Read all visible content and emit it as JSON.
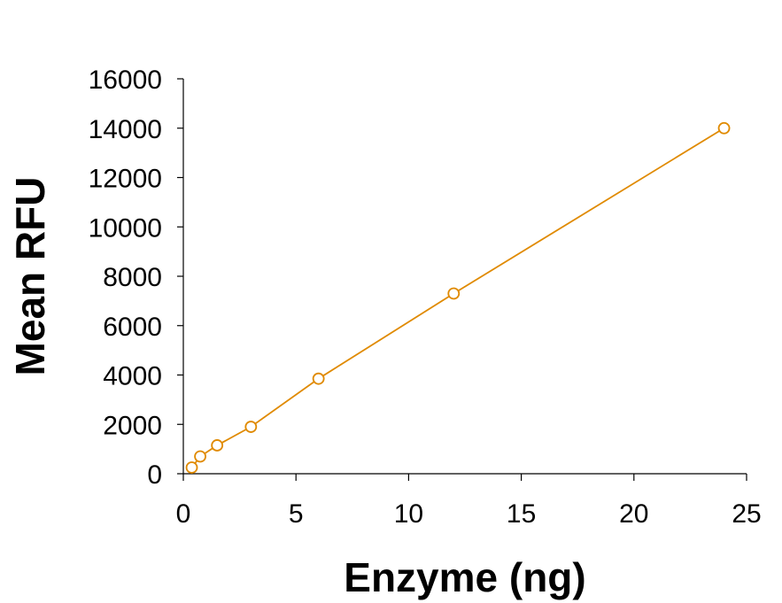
{
  "chart_data": {
    "type": "scatter",
    "x_label": "Enzyme (ng)",
    "y_label": "Mean RFU",
    "x": [
      0.375,
      0.75,
      1.5,
      3,
      6,
      12,
      24
    ],
    "series": [
      {
        "color": "#e08a00",
        "values": [
          250,
          700,
          1150,
          1900,
          3850,
          7300,
          14000
        ]
      }
    ],
    "xlim": [
      0,
      25
    ],
    "xticks": [
      0,
      5,
      10,
      15,
      20,
      25
    ],
    "ylim": [
      0,
      16000
    ],
    "yticks": [
      0,
      2000,
      4000,
      6000,
      8000,
      10000,
      12000,
      14000,
      16000
    ],
    "connect_points": true,
    "grid": false
  }
}
